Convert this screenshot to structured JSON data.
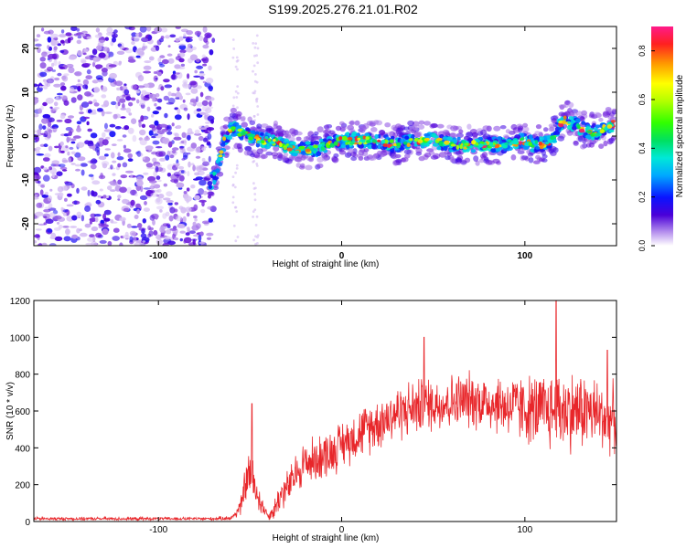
{
  "title": "S199.2025.276.21.01.R02",
  "chart_data": [
    {
      "type": "heatmap",
      "name": "spectrogram",
      "title": "S199.2025.276.21.01.R02",
      "xlabel": "Height of straight line (km)",
      "ylabel": "Frequency (Hz)",
      "xlim": [
        -168,
        150
      ],
      "ylim": [
        -25,
        25
      ],
      "xticks": [
        -100,
        0,
        100
      ],
      "yticks": [
        -20,
        -10,
        0,
        10,
        20
      ],
      "xtick_labels": [
        "-100",
        "0",
        "100"
      ],
      "ytick_labels": [
        "-20",
        "-10",
        "0",
        "10",
        "20"
      ],
      "colorbar": {
        "label": "Normalized spectral amplitude",
        "range": [
          0.0,
          0.9
        ],
        "ticks": [
          0.0,
          0.2,
          0.4,
          0.6,
          0.8
        ],
        "tick_labels": [
          "0.0",
          "0.2",
          "0.4",
          "0.6",
          "0.8"
        ]
      },
      "ridge": {
        "x": [
          -72,
          -68,
          -64,
          -60,
          -56,
          -50,
          -44,
          -38,
          -32,
          -26,
          -20,
          -14,
          -8,
          0,
          10,
          20,
          30,
          40,
          50,
          60,
          70,
          80,
          90,
          100,
          105,
          110,
          115,
          118,
          122,
          126,
          130,
          135,
          140,
          145,
          149
        ],
        "freq": [
          -11,
          -8,
          -1,
          2,
          1,
          0,
          -1,
          -1,
          -2,
          -3,
          -3,
          -3,
          -2,
          -1,
          -1,
          -1,
          -2,
          -1,
          -1,
          -2,
          -2,
          -2,
          -2,
          -1,
          -2,
          -2,
          -1,
          2,
          4,
          3,
          2,
          1,
          1,
          2,
          3
        ]
      }
    },
    {
      "type": "line",
      "name": "snr",
      "xlabel": "Height of straight line (km)",
      "ylabel": "SNR (10 * v/v)",
      "xlim": [
        -168,
        150
      ],
      "ylim": [
        0,
        1200
      ],
      "xticks": [
        -100,
        0,
        100
      ],
      "yticks": [
        0,
        200,
        400,
        600,
        800,
        1000,
        1200
      ],
      "xtick_labels": [
        "-100",
        "0",
        "100"
      ],
      "ytick_labels": [
        "0",
        "200",
        "400",
        "600",
        "800",
        "1000",
        "1200"
      ],
      "color": "#e8262a",
      "envelope": {
        "x": [
          -168,
          -100,
          -70,
          -60,
          -55,
          -52,
          -50,
          -48,
          -45,
          -42,
          -40,
          -37,
          -35,
          -32,
          -28,
          -25,
          -20,
          -15,
          -10,
          -5,
          0,
          10,
          20,
          30,
          40,
          50,
          60,
          70,
          80,
          90,
          100,
          110,
          115,
          120,
          125,
          130,
          135,
          140,
          145,
          150
        ],
        "mean": [
          15,
          15,
          15,
          20,
          80,
          230,
          260,
          200,
          120,
          60,
          30,
          60,
          110,
          160,
          200,
          260,
          320,
          330,
          360,
          380,
          420,
          480,
          540,
          590,
          620,
          640,
          650,
          660,
          650,
          630,
          610,
          600,
          600,
          610,
          600,
          600,
          600,
          580,
          560,
          560
        ],
        "spread": [
          10,
          10,
          10,
          15,
          60,
          140,
          170,
          140,
          90,
          40,
          25,
          60,
          90,
          110,
          120,
          130,
          150,
          150,
          150,
          150,
          150,
          160,
          170,
          180,
          180,
          180,
          180,
          180,
          190,
          200,
          220,
          240,
          260,
          270,
          260,
          250,
          240,
          230,
          220,
          220
        ]
      },
      "peaks": [
        {
          "x": -49,
          "y": 640
        },
        {
          "x": 45,
          "y": 1000
        },
        {
          "x": 117,
          "y": 1200
        },
        {
          "x": 145,
          "y": 930
        }
      ]
    }
  ]
}
